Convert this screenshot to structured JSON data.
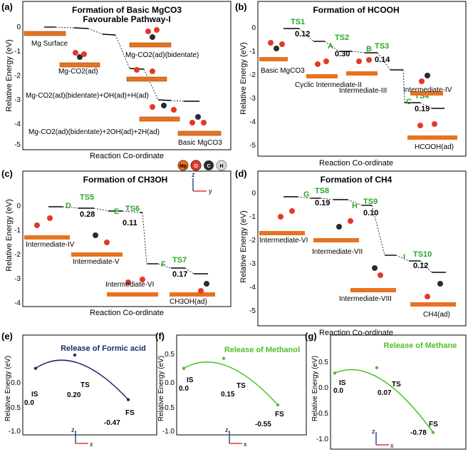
{
  "legend": {
    "atoms": [
      {
        "label": "Mg",
        "color": "#e8731f"
      },
      {
        "label": "O",
        "color": "#e03a2a"
      },
      {
        "label": "C",
        "color": "#2b2b2b"
      },
      {
        "label": "H",
        "color": "#d8d8d8"
      }
    ]
  },
  "colors": {
    "ts": "#2aa52a",
    "step": "#2aa52a",
    "energy": "#000000",
    "curve_e": "#1f2a6b",
    "curve_fg": "#4fbf2a",
    "mg": "#e8731f",
    "o": "#e03a2a"
  },
  "chart_data": [
    {
      "panel": "(a)",
      "type": "line",
      "title": "Formation of Basic MgCO3",
      "title_sub": "3",
      "title2": "Favourable Pathway-I",
      "xlabel": "Reaction Co-ordinate",
      "ylabel": "Relative Energy (eV)",
      "ylim": [
        -5,
        0.5
      ],
      "yticks": [
        "0",
        "-1",
        "-2",
        "-3",
        "-4",
        "-5"
      ],
      "levels": [
        0,
        0,
        -0.3,
        -1.8,
        -1.85,
        -3.25,
        -3.3
      ],
      "labels": [
        "Mg Surface",
        "Mg-CO2(ad)",
        "Mg-CO2(ad)(bidentate)",
        "Mg-CO2(ad)(bidentate)+OH(ad)+H(ad)",
        "Mg-CO2(ad)(bidentate)+2OH(ad)+2H(ad)",
        "Basic MgCO3"
      ]
    },
    {
      "panel": "(b)",
      "type": "line",
      "title": "Formation of HCOOH",
      "xlabel": "Reaction Co-ordinate",
      "ylabel": "Relative Energy (eV)",
      "ylim": [
        -5.5,
        0.5
      ],
      "yticks": [
        "0",
        "-1",
        "-2",
        "-3",
        "-4",
        "-5"
      ],
      "levels": [
        -0.15,
        -0.55,
        -1.0,
        -1.05,
        -1.75,
        -3.15,
        -3.45
      ],
      "ts": [
        {
          "label": "TS1",
          "value": "0.12"
        },
        {
          "label": "TS2",
          "value": "0.30"
        },
        {
          "label": "TS3",
          "value": "0.14"
        },
        {
          "label": "TS4",
          "value": "0.19"
        }
      ],
      "steps": [
        "A",
        "B",
        "C"
      ],
      "labels": [
        "Basic MgCO3",
        "Cyclic Intermediate-II",
        "Intermediate-III",
        "Intermediate-IV",
        "HCOOH(ad)"
      ]
    },
    {
      "panel": "(c)",
      "type": "line",
      "title": "Formation of CH3OH",
      "xlabel": "Reaction Co-ordinate",
      "ylabel": "Relative Energy (eV)",
      "ylim": [
        -4,
        0.8
      ],
      "yticks": [
        "0",
        "-1",
        "-2",
        "-3",
        "-4"
      ],
      "levels": [
        0,
        -0.1,
        -0.15,
        -0.25,
        -1.85,
        -2.05,
        -2.25
      ],
      "ts": [
        {
          "label": "TS5",
          "value": "0.28"
        },
        {
          "label": "TS6",
          "value": "0.11"
        },
        {
          "label": "TS7",
          "value": "0.17"
        }
      ],
      "steps": [
        "D",
        "E",
        "F"
      ],
      "labels": [
        "Intermediate-IV",
        "Intermediate-V",
        "Intermediate-VI",
        "CH3OH(ad)"
      ]
    },
    {
      "panel": "(d)",
      "type": "line",
      "title": "Formation of CH4",
      "xlabel": "Reaction Co-ordinate",
      "ylabel": "Relative Energy (eV)",
      "ylim": [
        -5.5,
        0.5
      ],
      "yticks": [
        "0",
        "-1",
        "-2",
        "-3",
        "-4",
        "-5"
      ],
      "levels": [
        -0.3,
        -0.35,
        -0.4,
        -0.55,
        -2.6,
        -2.85,
        -3.35
      ],
      "ts": [
        {
          "label": "TS8",
          "value": "0.19"
        },
        {
          "label": "TS9",
          "value": "0.10"
        },
        {
          "label": "TS10",
          "value": "0.12"
        }
      ],
      "steps": [
        "G",
        "H",
        "I"
      ],
      "labels": [
        "Intermediate-VI",
        "Intermediate-VII",
        "Intermediate-VIII",
        "CH4(ad)"
      ]
    },
    {
      "panel": "(e)",
      "type": "line",
      "title": "Release of Formic acid",
      "ylabel": "Relative Energy (eV)",
      "ylim": [
        -1.0,
        0.5
      ],
      "yticks": [
        "0.0",
        "-0.5",
        "-1.0"
      ],
      "points": [
        {
          "label": "IS",
          "value": "0.0"
        },
        {
          "label": "TS",
          "value": "0.20"
        },
        {
          "label": "FS",
          "value": "-0.47"
        }
      ],
      "y": [
        0.0,
        0.2,
        -0.47
      ]
    },
    {
      "panel": "(f)",
      "type": "line",
      "title": "Release of Methanol",
      "ylabel": "Relative Energy (eV)",
      "ylim": [
        -1.0,
        0.5
      ],
      "yticks": [
        "0.5",
        "0.0",
        "-0.5",
        "-1.0"
      ],
      "points": [
        {
          "label": "IS",
          "value": "0.0"
        },
        {
          "label": "TS",
          "value": "0.15"
        },
        {
          "label": "FS",
          "value": "-0.55"
        }
      ],
      "y": [
        0.0,
        0.15,
        -0.55
      ]
    },
    {
      "panel": "(g)",
      "type": "line",
      "title": "Release of Methane",
      "ylabel": "Relative Energy (eV)",
      "ylim": [
        -1.0,
        0.5
      ],
      "yticks": [
        "0.5",
        "0.0",
        "-0.5",
        "-1.0"
      ],
      "points": [
        {
          "label": "IS",
          "value": "0.0"
        },
        {
          "label": "TS",
          "value": "0.07"
        },
        {
          "label": "FS",
          "value": "-0.78"
        }
      ],
      "y": [
        0.0,
        0.07,
        -0.78
      ]
    }
  ],
  "axes": {
    "x": "x",
    "y": "y",
    "z": "z"
  }
}
